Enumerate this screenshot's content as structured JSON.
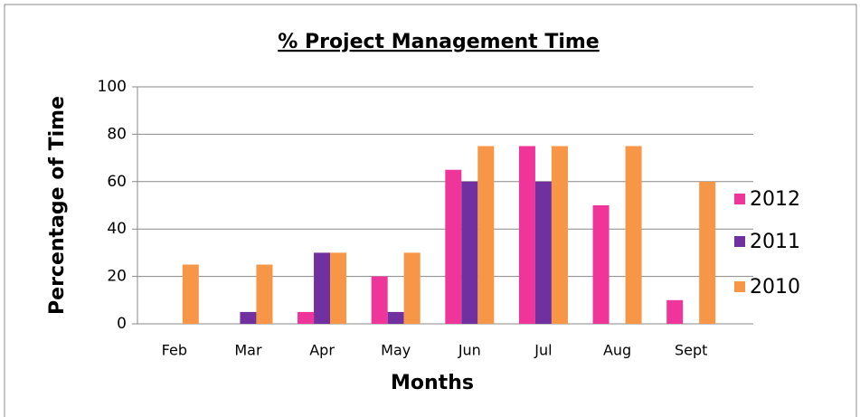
{
  "chart_data": {
    "type": "bar",
    "title": "% Project Management Time",
    "x_label": "Months",
    "y_label": "Percentage of Time",
    "categories": [
      "Feb",
      "Mar",
      "Apr",
      "May",
      "Jun",
      "Jul",
      "Aug",
      "Sept"
    ],
    "series": [
      {
        "name": "2012",
        "color": "#f0359a",
        "values": [
          0,
          0,
          5,
          20,
          65,
          75,
          50,
          10
        ]
      },
      {
        "name": "2011",
        "color": "#7030a0",
        "values": [
          0,
          5,
          30,
          5,
          60,
          60,
          0,
          0
        ]
      },
      {
        "name": "2010",
        "color": "#f79646",
        "values": [
          25,
          25,
          30,
          30,
          75,
          75,
          75,
          60
        ]
      }
    ],
    "ylim": [
      0,
      100
    ],
    "yticks": [
      0,
      20,
      40,
      60,
      80,
      100
    ],
    "grid": true,
    "legend": "right"
  }
}
